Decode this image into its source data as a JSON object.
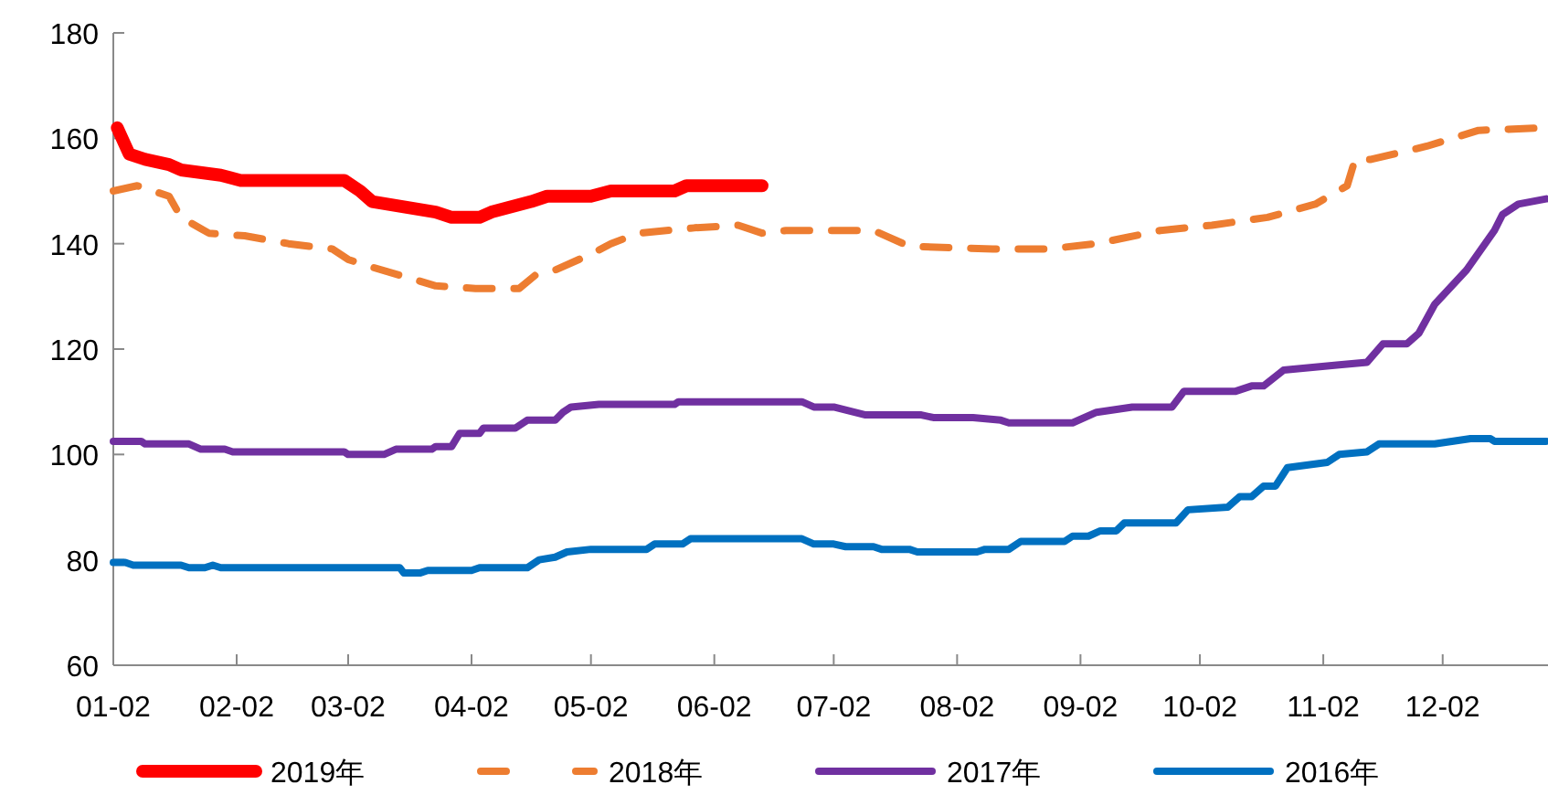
{
  "chart_data": {
    "type": "line",
    "legend": "bottom",
    "grid": false,
    "xlim": [
      "--01-02",
      "--12-28"
    ],
    "xticks": [
      {
        "value": "--01-02",
        "label": "01-02"
      },
      {
        "value": "--02-02",
        "label": "02-02"
      },
      {
        "value": "--03-02",
        "label": "03-02"
      },
      {
        "value": "--04-02",
        "label": "04-02"
      },
      {
        "value": "--05-02",
        "label": "05-02"
      },
      {
        "value": "--06-02",
        "label": "06-02"
      },
      {
        "value": "--07-02",
        "label": "07-02"
      },
      {
        "value": "--08-02",
        "label": "08-02"
      },
      {
        "value": "--09-02",
        "label": "09-02"
      },
      {
        "value": "--10-02",
        "label": "10-02"
      },
      {
        "value": "--11-02",
        "label": "11-02"
      },
      {
        "value": "--12-02",
        "label": "12-02"
      }
    ],
    "ylim": [
      60,
      180
    ],
    "yticks": [
      60,
      80,
      100,
      120,
      140,
      160,
      180
    ],
    "series": [
      {
        "name": "2019年",
        "color": "#ff0000",
        "line_style": "solid",
        "x": [
          "--01-03",
          "--01-06",
          "--01-10",
          "--01-16",
          "--01-19",
          "--01-29",
          "--02-03",
          "--03-01",
          "--03-05",
          "--03-08",
          "--03-16",
          "--03-24",
          "--03-28",
          "--04-04",
          "--04-07",
          "--04-12",
          "--04-17",
          "--04-21",
          "--05-02",
          "--05-07",
          "--05-23",
          "--05-26",
          "--06-14"
        ],
        "values": [
          162,
          157,
          156,
          155,
          154,
          153,
          152,
          152,
          150,
          148,
          147,
          146,
          145,
          145,
          146,
          147,
          148,
          149,
          149,
          150,
          150,
          151,
          151
        ]
      },
      {
        "name": "2018年",
        "color": "#ed7d31",
        "line_style": "dashed",
        "x": [
          "--01-02",
          "--01-08",
          "--01-16",
          "--01-19",
          "--01-26",
          "--02-04",
          "--02-15",
          "--02-26",
          "--03-02",
          "--03-06",
          "--03-15",
          "--03-24",
          "--04-03",
          "--04-14",
          "--04-18",
          "--04-23",
          "--05-02",
          "--05-07",
          "--05-14",
          "--05-28",
          "--06-08",
          "--06-14",
          "--06-20",
          "--07-12",
          "--07-21",
          "--08-11",
          "--08-25",
          "--09-06",
          "--09-22",
          "--10-05",
          "--10-19",
          "--10-31",
          "--11-08",
          "--11-10",
          "--11-14",
          "--11-28",
          "--12-11",
          "--12-28"
        ],
        "values": [
          150,
          151,
          149,
          145,
          142,
          141.5,
          140,
          139,
          137,
          136,
          134,
          132,
          131.5,
          131.5,
          134,
          135,
          138,
          140,
          142,
          143,
          143.5,
          142,
          142.5,
          142.5,
          139.5,
          139,
          139,
          140,
          142.5,
          143.5,
          145,
          147.5,
          151,
          156,
          156,
          158.5,
          161.5,
          162
        ]
      },
      {
        "name": "2017年",
        "color": "#7030a0",
        "line_style": "solid",
        "x": [
          "--01-02",
          "--01-09",
          "--01-10",
          "--01-21",
          "--01-24",
          "--01-30",
          "--02-01",
          "--03-01",
          "--03-02",
          "--03-11",
          "--03-14",
          "--03-23",
          "--03-24",
          "--03-28",
          "--03-30",
          "--04-04",
          "--04-05",
          "--04-13",
          "--04-16",
          "--04-23",
          "--04-25",
          "--04-27",
          "--05-04",
          "--05-23",
          "--05-24",
          "--06-24",
          "--06-27",
          "--07-02",
          "--07-10",
          "--07-24",
          "--07-27",
          "--08-06",
          "--08-13",
          "--08-15",
          "--08-31",
          "--09-06",
          "--09-15",
          "--09-25",
          "--09-28",
          "--10-11",
          "--10-15",
          "--10-18",
          "--10-23",
          "--11-06",
          "--11-13",
          "--11-17",
          "--11-23",
          "--11-26",
          "--11-30",
          "--12-08",
          "--12-15",
          "--12-17",
          "--12-21",
          "--12-28"
        ],
        "values": [
          102.5,
          102.5,
          102,
          102,
          101,
          101,
          100.5,
          100.5,
          100,
          100,
          101,
          101,
          101.5,
          101.5,
          104,
          104,
          105,
          105,
          106.5,
          106.5,
          108,
          109,
          109.5,
          109.5,
          110,
          110,
          109,
          109,
          107.5,
          107.5,
          107,
          107,
          106.5,
          106,
          106,
          108,
          109,
          109,
          112,
          112,
          113,
          113,
          116,
          117,
          117.5,
          121,
          121,
          123,
          128.5,
          135,
          142.5,
          145.5,
          147.5,
          148.5
        ]
      },
      {
        "name": "2016年",
        "color": "#0070c0",
        "line_style": "solid",
        "x": [
          "--01-02",
          "--01-05",
          "--01-07",
          "--01-19",
          "--01-21",
          "--01-25",
          "--01-27",
          "--01-29",
          "--03-15",
          "--03-16",
          "--03-20",
          "--03-22",
          "--04-02",
          "--04-04",
          "--04-16",
          "--04-19",
          "--04-23",
          "--04-26",
          "--05-02",
          "--05-16",
          "--05-18",
          "--05-25",
          "--05-27",
          "--06-24",
          "--06-27",
          "--07-02",
          "--07-05",
          "--07-12",
          "--07-14",
          "--07-21",
          "--07-23",
          "--08-07",
          "--08-09",
          "--08-15",
          "--08-18",
          "--08-29",
          "--08-31",
          "--09-04",
          "--09-07",
          "--09-11",
          "--09-13",
          "--09-26",
          "--09-29",
          "--10-09",
          "--10-12",
          "--10-15",
          "--10-18",
          "--10-21",
          "--10-24",
          "--11-03",
          "--11-06",
          "--11-13",
          "--11-16",
          "--11-30",
          "--12-09",
          "--12-14",
          "--12-15",
          "--12-28"
        ],
        "values": [
          79.5,
          79.5,
          79,
          79,
          78.5,
          78.5,
          79,
          78.5,
          78.5,
          77.5,
          77.5,
          78,
          78,
          78.5,
          78.5,
          80,
          80.5,
          81.5,
          82,
          82,
          83,
          83,
          84,
          84,
          83,
          83,
          82.5,
          82.5,
          82,
          82,
          81.5,
          81.5,
          82,
          82,
          83.5,
          83.5,
          84.5,
          84.5,
          85.5,
          85.5,
          87,
          87,
          89.5,
          90,
          92,
          92,
          94,
          94,
          97.5,
          98.5,
          100,
          100.5,
          102,
          102,
          103,
          103,
          102.5,
          102.5
        ]
      }
    ]
  }
}
